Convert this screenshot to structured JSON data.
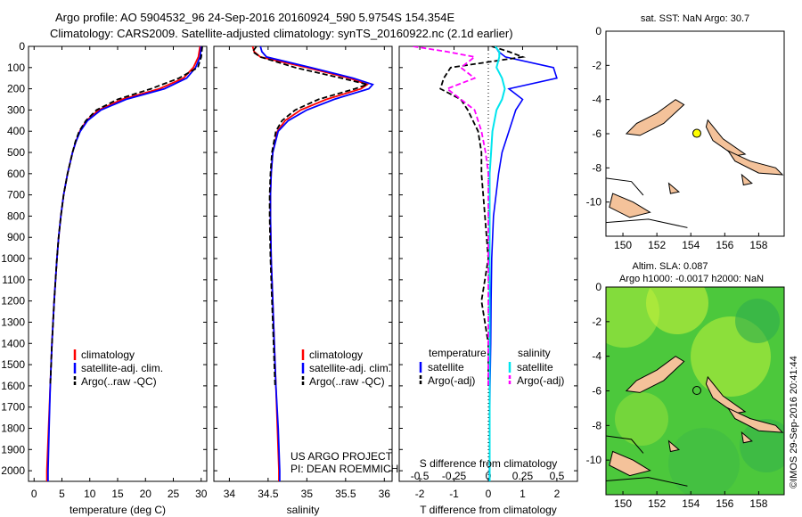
{
  "header": {
    "title_line1": "Argo profile: AO 5904532_96 24-Sep-2016 20160924_590 5.9754S 154.354E",
    "title_line2": "Climatology: CARS2009. Satellite-adjusted climatology: synTS_20160922.nc (2.1d earlier)"
  },
  "credits": {
    "project": "US ARGO PROJECT",
    "pi": "PI: DEAN ROEMMICH",
    "imos": "©IMOS 29-Sep-2016 20:41:44"
  },
  "colors": {
    "climatology": "#ff0000",
    "satellite": "#0000ff",
    "argo": "#000000",
    "sal_sat": "#00e5ee",
    "sal_argo": "#ff00ff",
    "land": "#f4c29a",
    "sla_green": "#4cc83c"
  },
  "chart_data": [
    {
      "type": "line",
      "panel": "temperature",
      "xlabel": "temperature (deg C)",
      "ylabel": "",
      "xlim": [
        -1,
        31
      ],
      "ylim": [
        2050,
        0
      ],
      "xticks": [
        "0",
        "5",
        "10",
        "15",
        "20",
        "25",
        "30"
      ],
      "yticks": [
        "0",
        "100",
        "200",
        "300",
        "400",
        "500",
        "600",
        "700",
        "800",
        "900",
        "1000",
        "1100",
        "1200",
        "1300",
        "1400",
        "1500",
        "1600",
        "1700",
        "1800",
        "1900",
        "2000"
      ],
      "legend": [
        "climatology",
        "satellite-adj. clim.",
        "Argo(..raw -QC)"
      ],
      "depth": [
        0,
        50,
        100,
        150,
        200,
        250,
        300,
        350,
        400,
        450,
        500,
        600,
        700,
        800,
        900,
        1000,
        1200,
        1400,
        1600,
        1800,
        2000,
        2050
      ],
      "series": [
        {
          "name": "climatology",
          "x": [
            29.8,
            29.5,
            28.6,
            26.8,
            22.5,
            15.8,
            11.6,
            9.4,
            8.2,
            7.5,
            6.9,
            6.0,
            5.3,
            4.8,
            4.4,
            4.1,
            3.6,
            3.2,
            2.9,
            2.6,
            2.3,
            2.3
          ]
        },
        {
          "name": "satellite-adj. clim.",
          "x": [
            30.0,
            29.8,
            29.0,
            27.4,
            23.4,
            16.5,
            12.0,
            9.6,
            8.3,
            7.5,
            6.9,
            6.0,
            5.3,
            4.8,
            4.4,
            4.1,
            3.6,
            3.2,
            2.9,
            2.7,
            2.5,
            2.5
          ]
        },
        {
          "name": "Argo(..raw -QC)",
          "x": [
            30.2,
            30.0,
            29.4,
            26.0,
            21.0,
            15.0,
            11.2,
            9.3,
            8.1,
            7.4,
            6.9,
            6.0,
            5.3,
            4.8,
            4.4,
            4.1,
            3.6,
            3.2,
            2.9,
            null,
            null,
            null
          ]
        }
      ]
    },
    {
      "type": "line",
      "panel": "salinity",
      "xlabel": "salinity",
      "xlim": [
        33.8,
        36.1
      ],
      "ylim": [
        2050,
        0
      ],
      "xticks": [
        "34",
        "34.5",
        "35",
        "35.5",
        "36"
      ],
      "legend": [
        "climatology",
        "satellite-adj. clim.",
        "Argo(..raw -QC)"
      ],
      "depth": [
        0,
        25,
        50,
        100,
        150,
        180,
        200,
        250,
        300,
        350,
        400,
        500,
        600,
        700,
        800,
        1000,
        1200,
        1400,
        1600,
        1800,
        2000,
        2050
      ],
      "series": [
        {
          "name": "climatology",
          "x": [
            34.3,
            34.32,
            34.4,
            35.0,
            35.55,
            35.78,
            35.7,
            35.25,
            34.92,
            34.72,
            34.62,
            34.56,
            34.54,
            34.53,
            34.53,
            34.54,
            34.56,
            34.58,
            34.6,
            34.62,
            34.64,
            34.64
          ]
        },
        {
          "name": "satellite-adj. clim.",
          "x": [
            34.4,
            34.42,
            34.48,
            35.05,
            35.6,
            35.85,
            35.8,
            35.35,
            35.0,
            34.76,
            34.63,
            34.56,
            34.54,
            34.53,
            34.53,
            34.54,
            34.56,
            34.58,
            34.6,
            34.63,
            34.65,
            34.65
          ]
        },
        {
          "name": "Argo(..raw -QC)",
          "x": [
            34.35,
            34.3,
            34.4,
            34.85,
            35.45,
            35.78,
            35.62,
            35.15,
            34.85,
            34.68,
            34.6,
            34.55,
            34.53,
            34.52,
            34.52,
            34.53,
            34.55,
            34.57,
            34.59,
            null,
            null,
            null
          ]
        }
      ]
    },
    {
      "type": "line",
      "panel": "difference",
      "xlabel": "T difference from climatology",
      "xlabel2": "S difference from climatology",
      "xlim": [
        -2.6,
        2.6
      ],
      "ylim": [
        2050,
        0
      ],
      "xticks": [
        "-2",
        "-1",
        "0",
        "1",
        "2"
      ],
      "xticks2": [
        "-0.5",
        "-0.25",
        "0",
        "0.25",
        "0.5"
      ],
      "legend_heads": [
        "temperature",
        "salinity"
      ],
      "legend": [
        "satellite",
        "Argo(-adj)",
        "satellite",
        "Argo(-adj)"
      ],
      "depth": [
        0,
        25,
        50,
        100,
        150,
        200,
        250,
        300,
        400,
        500,
        600,
        800,
        1000,
        1200,
        1400,
        1600,
        1800,
        2000,
        2050
      ],
      "series": [
        {
          "name": "T satellite",
          "x": [
            0.2,
            0.3,
            0.5,
            1.9,
            2.0,
            0.6,
            1.0,
            0.8,
            0.6,
            0.4,
            0.3,
            0.15,
            0.1,
            0.08,
            0.07,
            0.05,
            0.04,
            0.03,
            0.03
          ]
        },
        {
          "name": "T Argo(-adj)",
          "x": [
            0.1,
            0.6,
            1.0,
            -1.1,
            -1.3,
            -1.4,
            -0.8,
            -0.6,
            -0.3,
            -0.2,
            -0.2,
            -0.1,
            0.0,
            -0.2,
            0.0,
            0.0,
            null,
            null,
            null
          ]
        },
        {
          "name": "S satellite",
          "x": [
            0.05,
            0.08,
            0.08,
            0.06,
            0.1,
            0.12,
            0.1,
            0.06,
            0.03,
            0.02,
            0.01,
            0.01,
            0.01,
            0.01,
            0.01,
            0.01,
            0.01,
            0.01,
            0.01
          ]
        },
        {
          "name": "S Argo(-adj)",
          "x": [
            -0.55,
            -0.3,
            -0.1,
            -0.2,
            -0.1,
            -0.3,
            -0.2,
            -0.1,
            -0.05,
            -0.02,
            0.0,
            0.0,
            0.0,
            0.0,
            0.0,
            0.0,
            null,
            null,
            null
          ]
        }
      ]
    },
    {
      "type": "map",
      "panel": "sst-map",
      "title": "sat. SST: NaN Argo: 30.7",
      "xlim": [
        149,
        159.5
      ],
      "ylim": [
        -12,
        0
      ],
      "xticks": [
        "150",
        "152",
        "154",
        "156",
        "158"
      ],
      "yticks": [
        "0",
        "-2",
        "-4",
        "-6",
        "-8",
        "-10"
      ],
      "marker": {
        "lon": 154.354,
        "lat": -5.9754,
        "color": "#ffff00"
      }
    },
    {
      "type": "heatmap",
      "panel": "sla-map",
      "title_line1": "Altim. SLA: 0.087",
      "title_line2": "Argo h1000: -0.0017 h2000: NaN",
      "xlim": [
        149,
        159.5
      ],
      "ylim": [
        -12,
        0
      ],
      "xticks": [
        "150",
        "152",
        "154",
        "156",
        "158"
      ],
      "yticks": [
        "0",
        "-2",
        "-4",
        "-6",
        "-8",
        "-10"
      ],
      "marker": {
        "lon": 154.354,
        "lat": -5.9754,
        "color": "#4cc83c"
      }
    }
  ]
}
